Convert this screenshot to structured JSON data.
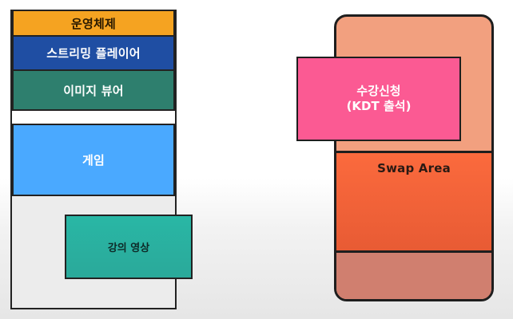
{
  "left_stack": {
    "items": [
      {
        "label": "운영체제"
      },
      {
        "label": "스트리밍 플레이어"
      },
      {
        "label": "이미지 뷰어"
      },
      {
        "label": "게임"
      }
    ],
    "overlay": {
      "label": "강의 영상"
    }
  },
  "right_diagram": {
    "swap_label": "Swap Area",
    "enroll_line1": "수강신청",
    "enroll_line2": "(KDT 출석)"
  },
  "colors": {
    "os": "#f5a321",
    "streaming": "#1f4ea3",
    "viewer": "#2e7f6e",
    "game": "#4aa9ff",
    "lecture": "#29b7a5",
    "enroll": "#fb5a93",
    "swap": "#fb6a3d",
    "outer_memory": "#f2a07f"
  }
}
